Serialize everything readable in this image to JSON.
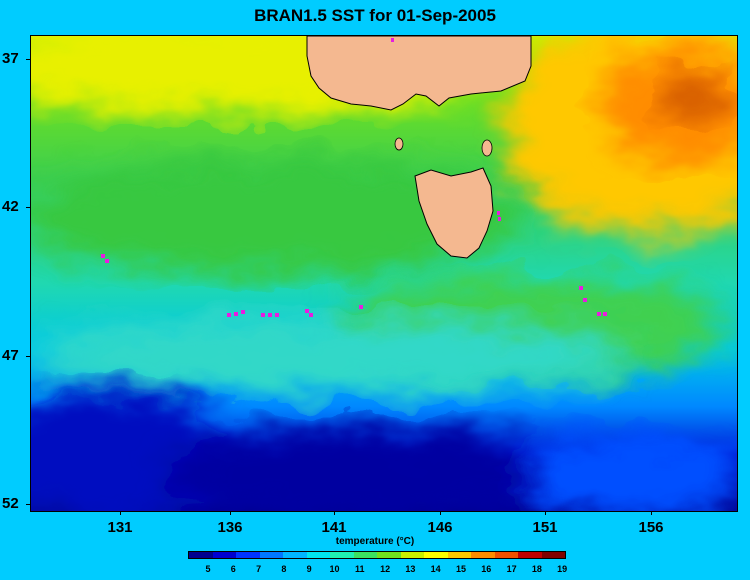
{
  "title": "BRAN1.5 SST for 01-Sep-2005",
  "map": {
    "lat_ticks": [
      "37",
      "42",
      "47",
      "52"
    ],
    "lon_ticks": [
      "131",
      "136",
      "141",
      "146",
      "151",
      "156"
    ],
    "land_color": "#f4b890",
    "coast_color": "#000000",
    "marker_color": "#e81ce0"
  },
  "colorbar": {
    "title": "temperature (°C)",
    "ticks": [
      "5",
      "6",
      "7",
      "8",
      "9",
      "10",
      "11",
      "12",
      "13",
      "14",
      "15",
      "16",
      "17",
      "18",
      "19"
    ],
    "colors": [
      "#00008f",
      "#0000d0",
      "#0033ff",
      "#0077ff",
      "#00b5ff",
      "#00e6ee",
      "#20f0b0",
      "#3ce060",
      "#6fe020",
      "#c8f000",
      "#ffff00",
      "#ffc800",
      "#ff8c00",
      "#f05000",
      "#c00000",
      "#800000"
    ]
  }
}
